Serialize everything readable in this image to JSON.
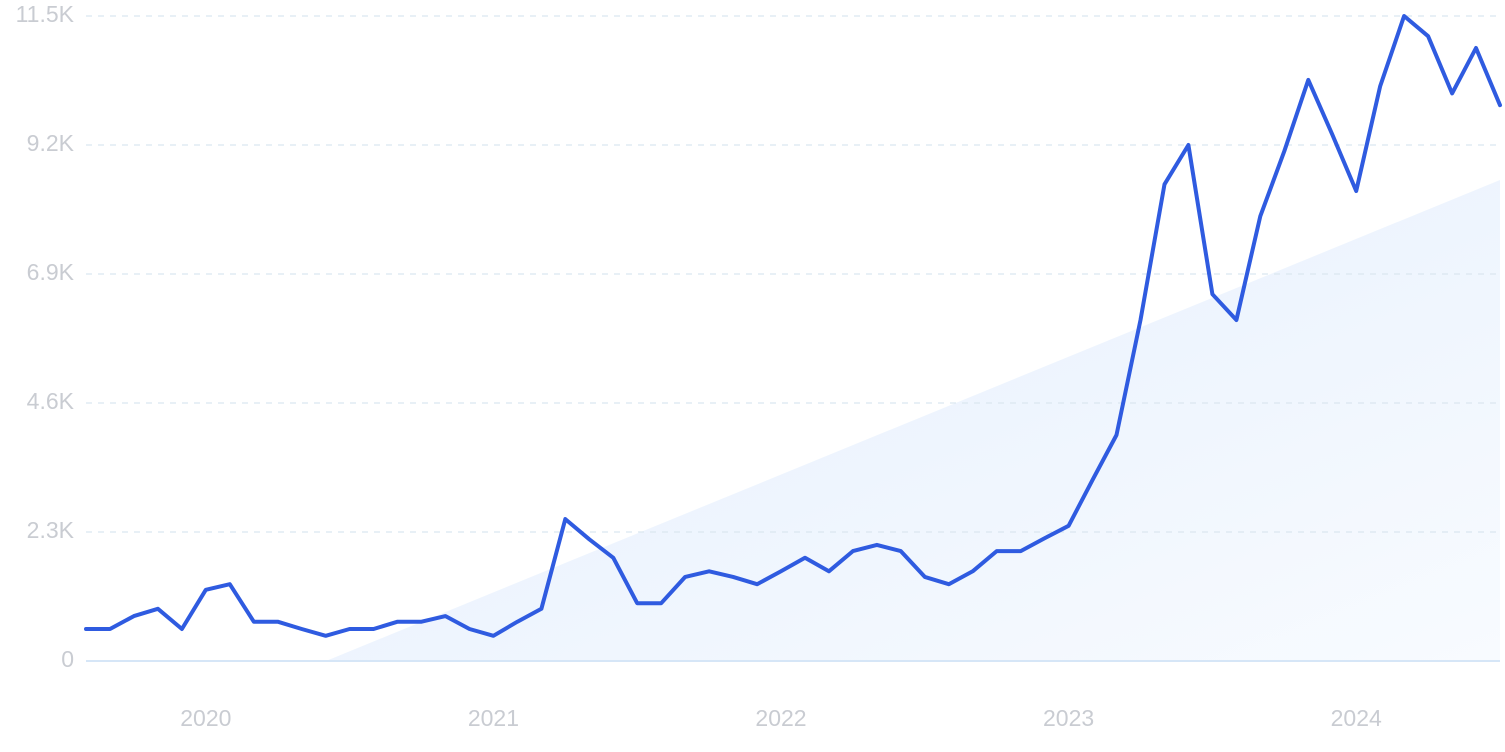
{
  "chart_data": {
    "type": "line",
    "categories": [
      null,
      null,
      null,
      null,
      null,
      "2020",
      null,
      null,
      null,
      null,
      null,
      null,
      null,
      null,
      null,
      null,
      null,
      "2021",
      null,
      null,
      null,
      null,
      null,
      null,
      null,
      null,
      null,
      null,
      null,
      "2022",
      null,
      null,
      null,
      null,
      null,
      null,
      null,
      null,
      null,
      null,
      null,
      "2023",
      null,
      null,
      null,
      null,
      null,
      null,
      null,
      null,
      null,
      null,
      null,
      "2024",
      null,
      null,
      null,
      null,
      null,
      null
    ],
    "series": [
      {
        "color": "#2f5be0",
        "values": [
          570,
          570,
          800,
          930,
          570,
          1270,
          1370,
          700,
          700,
          570,
          450,
          570,
          570,
          700,
          700,
          800,
          570,
          450,
          700,
          930,
          2530,
          2170,
          1840,
          1030,
          1030,
          1500,
          1600,
          1500,
          1370,
          1600,
          1840,
          1600,
          1960,
          2070,
          1960,
          1500,
          1370,
          1600,
          1960,
          1960,
          2190,
          2410,
          3230,
          4030,
          6080,
          8500,
          9200,
          6540,
          6080,
          7930,
          9090,
          10360,
          9390,
          8380,
          10250,
          11500,
          11140,
          10120,
          10930,
          9910
        ]
      }
    ],
    "ylim": [
      0,
      11500
    ],
    "yticks": [
      0,
      {
        "value": 2300,
        "label": "2.3K"
      },
      {
        "value": 4600,
        "label": "4.6K"
      },
      {
        "value": 6900,
        "label": "6.9K"
      },
      {
        "value": 9200,
        "label": "9.2K"
      },
      {
        "value": 11500,
        "label": "11.5K"
      }
    ],
    "grid": true
  }
}
